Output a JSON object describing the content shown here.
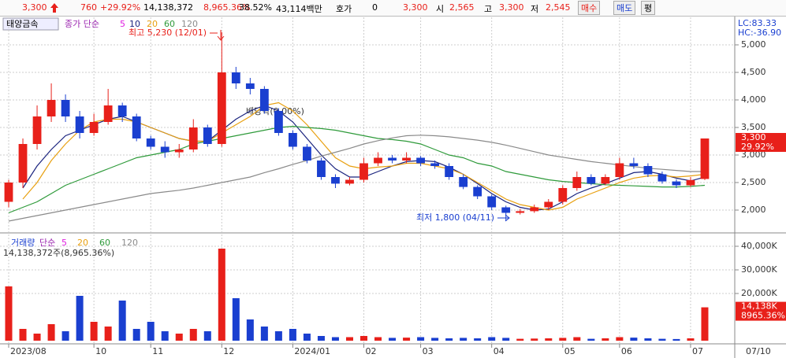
{
  "header": {
    "price": "3,300",
    "change": "760",
    "change_pct": "+29.92%",
    "volume": "14,138,372",
    "volume_pct": "8,965.36%",
    "turnover": "38.52%",
    "amount": "43,114백만",
    "quote_label": "호가",
    "quote": "0",
    "quote_price": "3,300",
    "open_label": "시",
    "open": "2,565",
    "high_label": "고",
    "high": "3,300",
    "low_label": "저",
    "low": "2,545",
    "buttons": [
      "매수",
      "매도",
      "평"
    ],
    "stock_name": "태양금속",
    "lc": "LC:83.33",
    "hc": "HC:-36.90",
    "price_tag_pct": "29.92%"
  },
  "chart_data": [
    {
      "type": "candlestick",
      "legend_title": "종가 단순",
      "extra_legend": [
        {
          "name": "5",
          "color": "#e020e0"
        }
      ],
      "up_color": "#e8201a",
      "down_color": "#1a3fd0",
      "open": [
        2150,
        2500,
        3200,
        3700,
        4000,
        3700,
        3400,
        3600,
        3900,
        3700,
        3300,
        3150,
        3050,
        3100,
        3500,
        3200,
        4500,
        4300,
        4200,
        3800,
        3400,
        3150,
        2900,
        2600,
        2480,
        2550,
        2850,
        2950,
        2900,
        2950,
        2850,
        2800,
        2600,
        2420,
        2250,
        2050,
        1950,
        1980,
        2050,
        2150,
        2400,
        2600,
        2480,
        2600,
        2850,
        2800,
        2650,
        2520,
        2450,
        2565
      ],
      "high": [
        2550,
        3300,
        3900,
        4300,
        4100,
        3800,
        3750,
        4200,
        3950,
        3750,
        3350,
        3250,
        3200,
        3650,
        3550,
        5230,
        4600,
        4400,
        4250,
        3850,
        3450,
        3200,
        2950,
        2650,
        2600,
        2950,
        3050,
        3000,
        3050,
        2980,
        2900,
        2850,
        2650,
        2450,
        2280,
        2080,
        2020,
        2100,
        2200,
        2450,
        2700,
        2650,
        2650,
        2950,
        2950,
        2850,
        2700,
        2560,
        2600,
        3300
      ],
      "low": [
        2050,
        2400,
        3100,
        3600,
        3600,
        3300,
        3350,
        3550,
        3600,
        3250,
        3100,
        2950,
        2950,
        3050,
        3150,
        3150,
        4200,
        4100,
        3750,
        3350,
        3100,
        2850,
        2550,
        2400,
        2450,
        2500,
        2800,
        2850,
        2850,
        2800,
        2750,
        2550,
        2380,
        2200,
        2000,
        1800,
        1920,
        1950,
        2000,
        2100,
        2350,
        2450,
        2450,
        2550,
        2750,
        2600,
        2480,
        2400,
        2420,
        2545
      ],
      "close": [
        2500,
        3200,
        3700,
        4000,
        3700,
        3400,
        3600,
        3900,
        3700,
        3300,
        3150,
        3050,
        3100,
        3500,
        3200,
        4500,
        4300,
        4200,
        3800,
        3400,
        3150,
        2900,
        2600,
        2480,
        2550,
        2850,
        2950,
        2900,
        2950,
        2850,
        2800,
        2600,
        2420,
        2250,
        2050,
        1950,
        1980,
        2050,
        2150,
        2400,
        2600,
        2480,
        2600,
        2850,
        2800,
        2650,
        2520,
        2450,
        2545,
        3300
      ],
      "series": [
        {
          "name": "10",
          "color": "#1a237e",
          "values": [
            null,
            2400,
            2800,
            3100,
            3350,
            3450,
            3550,
            3650,
            3700,
            3600,
            3500,
            3400,
            3300,
            3250,
            3250,
            3450,
            3650,
            3800,
            3900,
            3800,
            3600,
            3300,
            3000,
            2750,
            2600,
            2600,
            2700,
            2800,
            2880,
            2900,
            2880,
            2780,
            2650,
            2480,
            2300,
            2150,
            2050,
            2000,
            2020,
            2150,
            2300,
            2400,
            2480,
            2580,
            2680,
            2700,
            2650,
            2580,
            2530,
            2600
          ]
        },
        {
          "name": "20",
          "color": "#e8a010",
          "values": [
            null,
            2200,
            2500,
            2900,
            3200,
            3450,
            3600,
            3650,
            3650,
            3600,
            3500,
            3400,
            3300,
            3250,
            3250,
            3400,
            3550,
            3700,
            3900,
            3950,
            3800,
            3550,
            3250,
            2950,
            2800,
            2750,
            2780,
            2800,
            2850,
            2850,
            2800,
            2750,
            2650,
            2500,
            2350,
            2200,
            2100,
            2050,
            2000,
            2050,
            2200,
            2300,
            2400,
            2500,
            2580,
            2620,
            2630,
            2600,
            2620,
            2650
          ]
        },
        {
          "name": "60",
          "color": "#2e9a3a",
          "values": [
            1950,
            2050,
            2150,
            2300,
            2450,
            2550,
            2650,
            2750,
            2850,
            2950,
            3000,
            3050,
            3100,
            3200,
            3250,
            3300,
            3350,
            3400,
            3450,
            3500,
            3520,
            3500,
            3480,
            3450,
            3400,
            3350,
            3300,
            3280,
            3250,
            3200,
            3100,
            3000,
            2950,
            2850,
            2800,
            2700,
            2650,
            2600,
            2550,
            2520,
            2500,
            2480,
            2460,
            2450,
            2440,
            2430,
            2420,
            2420,
            2430,
            2450
          ]
        },
        {
          "name": "120",
          "color": "#8a8a8a",
          "values": [
            1800,
            1850,
            1900,
            1950,
            2000,
            2050,
            2100,
            2150,
            2200,
            2250,
            2300,
            2330,
            2360,
            2400,
            2450,
            2500,
            2550,
            2600,
            2680,
            2750,
            2830,
            2900,
            2980,
            3050,
            3120,
            3200,
            3260,
            3310,
            3350,
            3360,
            3350,
            3330,
            3300,
            3270,
            3230,
            3180,
            3120,
            3060,
            3000,
            2960,
            2920,
            2880,
            2850,
            2820,
            2790,
            2760,
            2740,
            2720,
            2700,
            2700
          ]
        }
      ],
      "ylim": [
        1600,
        5500
      ],
      "yticks": [
        {
          "value": 2000,
          "label": "2,000"
        },
        {
          "value": 2500,
          "label": "2,500"
        },
        {
          "value": 3000,
          "label": "3,000"
        },
        {
          "value": 3500,
          "label": "3,500"
        },
        {
          "value": 4000,
          "label": "4,000"
        },
        {
          "value": 4500,
          "label": "4,500"
        },
        {
          "value": 5000,
          "label": "5,000"
        }
      ],
      "annotations": [
        "최고 5,230 (12/01)",
        "최저 1,800 (04/11)",
        "배당락(0.00%)"
      ]
    },
    {
      "type": "bar",
      "legend": [
        {
          "text": "거래량",
          "color": "#1a3fd0"
        },
        {
          "text": "단순",
          "color": "#9c27b0"
        },
        {
          "text": "5",
          "color": "#e020e0"
        },
        {
          "text": "20",
          "color": "#e8a010"
        },
        {
          "text": "60",
          "color": "#2e9a3a"
        },
        {
          "text": "120",
          "color": "#8a8a8a"
        }
      ],
      "info": "14,138,372주(8,965.36%)",
      "tag": "14,138K",
      "tag_pct": "8965.36%",
      "categories": [
        "2023/08",
        null,
        null,
        null,
        null,
        null,
        "10",
        null,
        null,
        null,
        "11",
        null,
        null,
        null,
        null,
        "12",
        null,
        null,
        null,
        null,
        "2024/01",
        null,
        null,
        null,
        null,
        "02",
        null,
        null,
        null,
        "03",
        null,
        null,
        null,
        null,
        "04",
        null,
        null,
        null,
        null,
        "05",
        null,
        null,
        null,
        "06",
        null,
        null,
        null,
        null,
        "07",
        null
      ],
      "x_end_label": "07/10",
      "values": [
        23000,
        5000,
        3000,
        7000,
        4000,
        19000,
        8000,
        6000,
        17000,
        5000,
        8000,
        4000,
        3000,
        5000,
        4000,
        39000,
        18000,
        9000,
        6000,
        4000,
        5000,
        3000,
        2000,
        1500,
        1500,
        2000,
        1500,
        1200,
        1300,
        1500,
        1200,
        1000,
        1200,
        1000,
        1500,
        1200,
        800,
        900,
        1000,
        1200,
        1500,
        800,
        1000,
        1500,
        1300,
        1000,
        800,
        700,
        1000,
        14138
      ],
      "ylim": [
        0,
        45000
      ],
      "yticks": [
        {
          "value": 20000,
          "label": "20,000K"
        },
        {
          "value": 30000,
          "label": "30,000K"
        },
        {
          "value": 40000,
          "label": "40,000K"
        }
      ]
    }
  ]
}
